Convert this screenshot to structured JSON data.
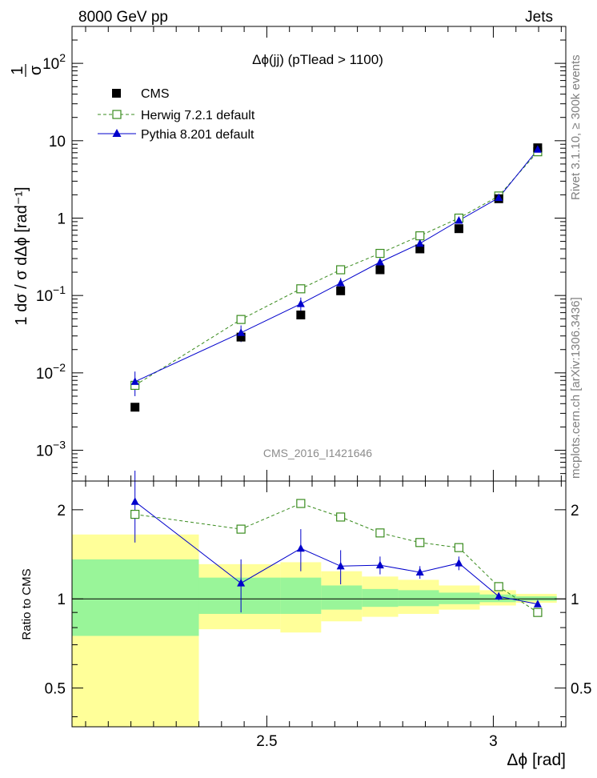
{
  "header": {
    "left": "8000 GeV pp",
    "right": "Jets"
  },
  "side_text": {
    "rivet": "Rivet 3.1.10, ≥ 300k events",
    "mcplots": "mcplots.cern.ch [arXiv:1306.3436]"
  },
  "colors": {
    "cms": "#000000",
    "herwig": "#3a8c1f",
    "pythia": "#0000cc",
    "band_inner": "#99f599",
    "band_outer": "#ffff99",
    "watermark": "#8c8c8c"
  },
  "chart_data": [
    {
      "type": "scatter",
      "panel": "main",
      "title": "Δϕ(jj) (pTlead >  1100)",
      "ylabel": "1 dσ / σ dΔϕ [rad⁻¹]",
      "xlabel": "",
      "yscale": "log",
      "xlim": [
        2.07,
        3.16
      ],
      "ylim": [
        0.0004,
        300
      ],
      "x_ticks": [
        2.5,
        3.0
      ],
      "y_ticks": [
        {
          "value": 0.001,
          "label_base": "10",
          "label_exp": "−3"
        },
        {
          "value": 0.01,
          "label_base": "10",
          "label_exp": "−2"
        },
        {
          "value": 0.1,
          "label_base": "10",
          "label_exp": "−1"
        },
        {
          "value": 1,
          "label_base": "1",
          "label_exp": ""
        },
        {
          "value": 10,
          "label_base": "10",
          "label_exp": ""
        },
        {
          "value": 100,
          "label_base": "10",
          "label_exp": "2"
        }
      ],
      "legend_position": "top-left",
      "watermark": "CMS_2016_I1421646",
      "series": [
        {
          "name": "CMS",
          "style": "filled-square",
          "x": [
            2.209,
            2.443,
            2.575,
            2.663,
            2.75,
            2.838,
            2.924,
            3.012,
            3.098
          ],
          "y": [
            0.0036,
            0.029,
            0.056,
            0.115,
            0.215,
            0.4,
            0.73,
            1.78,
            8.1
          ]
        },
        {
          "name": "Herwig 7.2.1 default",
          "style": "open-square-dashed",
          "x": [
            2.209,
            2.443,
            2.575,
            2.663,
            2.75,
            2.838,
            2.924,
            3.012,
            3.098
          ],
          "y": [
            0.0069,
            0.049,
            0.122,
            0.215,
            0.35,
            0.59,
            1.0,
            1.93,
            7.2
          ],
          "yerr": [
            0.0003,
            0.002,
            0.004,
            0.006,
            0.008,
            0.01,
            0.02,
            0.03,
            0.1
          ]
        },
        {
          "name": "Pythia 8.201 default",
          "style": "triangle-solid",
          "x": [
            2.209,
            2.443,
            2.575,
            2.663,
            2.75,
            2.838,
            2.924,
            3.012,
            3.098
          ],
          "y": [
            0.0077,
            0.033,
            0.078,
            0.145,
            0.27,
            0.47,
            0.93,
            1.83,
            7.7
          ],
          "yerr": [
            0.0027,
            0.008,
            0.016,
            0.023,
            0.025,
            0.05,
            0.06,
            0.06,
            0.1
          ]
        }
      ]
    },
    {
      "type": "line",
      "panel": "ratio",
      "ylabel": "Ratio to CMS",
      "xlabel": "Δϕ [rad]",
      "yscale": "log",
      "xlim": [
        2.07,
        3.16
      ],
      "ylim": [
        0.37,
        2.5
      ],
      "x_ticks": [
        2.5,
        3.0
      ],
      "y_ticks": [
        {
          "value": 0.5,
          "label": "0.5"
        },
        {
          "value": 1,
          "label": "1"
        },
        {
          "value": 2,
          "label": "2"
        }
      ],
      "bands": [
        {
          "x0": 2.07,
          "x1": 2.35,
          "outer": [
            0.37,
            1.65
          ],
          "inner": [
            0.75,
            1.36
          ]
        },
        {
          "x0": 2.35,
          "x1": 2.53,
          "outer": [
            0.79,
            1.31
          ],
          "inner": [
            0.89,
            1.18
          ]
        },
        {
          "x0": 2.53,
          "x1": 2.62,
          "outer": [
            0.77,
            1.33
          ],
          "inner": [
            0.89,
            1.18
          ]
        },
        {
          "x0": 2.62,
          "x1": 2.71,
          "outer": [
            0.84,
            1.24
          ],
          "inner": [
            0.92,
            1.11
          ]
        },
        {
          "x0": 2.71,
          "x1": 2.79,
          "outer": [
            0.87,
            1.19
          ],
          "inner": [
            0.94,
            1.08
          ]
        },
        {
          "x0": 2.79,
          "x1": 2.88,
          "outer": [
            0.89,
            1.16
          ],
          "inner": [
            0.945,
            1.07
          ]
        },
        {
          "x0": 2.88,
          "x1": 2.97,
          "outer": [
            0.92,
            1.11
          ],
          "inner": [
            0.96,
            1.05
          ]
        },
        {
          "x0": 2.97,
          "x1": 3.05,
          "outer": [
            0.95,
            1.07
          ],
          "inner": [
            0.975,
            1.035
          ]
        },
        {
          "x0": 3.05,
          "x1": 3.14,
          "outer": [
            0.97,
            1.04
          ],
          "inner": [
            0.985,
            1.02
          ]
        }
      ],
      "series": [
        {
          "name": "Herwig 7.2.1 default",
          "style": "open-square-dashed",
          "x": [
            2.209,
            2.443,
            2.575,
            2.663,
            2.75,
            2.838,
            2.924,
            3.012,
            3.098
          ],
          "y": [
            1.93,
            1.72,
            2.1,
            1.89,
            1.67,
            1.55,
            1.49,
            1.1,
            0.9
          ],
          "yerr": [
            0.02,
            0.05,
            0.07,
            0.03,
            0.02,
            0.02,
            0.02,
            0.02,
            0.01
          ]
        },
        {
          "name": "Pythia 8.201 default",
          "style": "triangle-solid",
          "x": [
            2.209,
            2.443,
            2.575,
            2.663,
            2.75,
            2.838,
            2.924,
            3.012,
            3.098
          ],
          "y": [
            2.13,
            1.13,
            1.48,
            1.29,
            1.3,
            1.23,
            1.32,
            1.02,
            0.96
          ],
          "yerr": [
            0.58,
            0.23,
            0.24,
            0.17,
            0.09,
            0.06,
            0.07,
            0.03,
            0.01
          ]
        }
      ]
    }
  ]
}
